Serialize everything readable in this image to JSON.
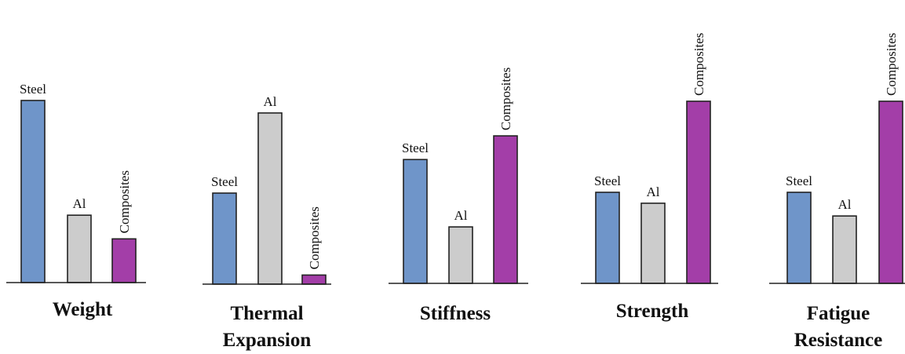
{
  "chart_data": [
    {
      "type": "bar",
      "title": "Weight",
      "categories": [
        "Steel",
        "Al",
        "Composites"
      ],
      "values": [
        100,
        37,
        24
      ],
      "colors": [
        "#6f95c9",
        "#cccccc",
        "#a33ea8"
      ],
      "ylim": [
        0,
        100
      ],
      "grid": false,
      "legend": "none"
    },
    {
      "type": "bar",
      "title": "Thermal\nExpansion",
      "categories": [
        "Steel",
        "Al",
        "Composites"
      ],
      "values": [
        50,
        94,
        5
      ],
      "colors": [
        "#6f95c9",
        "#cccccc",
        "#a33ea8"
      ],
      "ylim": [
        0,
        100
      ],
      "grid": false,
      "legend": "none"
    },
    {
      "type": "bar",
      "title": "Stiffness",
      "categories": [
        "Steel",
        "Al",
        "Composites"
      ],
      "values": [
        68,
        31,
        81
      ],
      "colors": [
        "#6f95c9",
        "#cccccc",
        "#a33ea8"
      ],
      "ylim": [
        0,
        100
      ],
      "grid": false,
      "legend": "none"
    },
    {
      "type": "bar",
      "title": "Strength",
      "categories": [
        "Steel",
        "Al",
        "Composites"
      ],
      "values": [
        50,
        44,
        100
      ],
      "colors": [
        "#6f95c9",
        "#cccccc",
        "#a33ea8"
      ],
      "ylim": [
        0,
        100
      ],
      "grid": false,
      "legend": "none"
    },
    {
      "type": "bar",
      "title": "Fatigue\nResistance",
      "categories": [
        "Steel",
        "Al",
        "Composites"
      ],
      "values": [
        50,
        37,
        100
      ],
      "colors": [
        "#6f95c9",
        "#cccccc",
        "#a33ea8"
      ],
      "ylim": [
        0,
        100
      ],
      "grid": false,
      "legend": "none"
    }
  ]
}
